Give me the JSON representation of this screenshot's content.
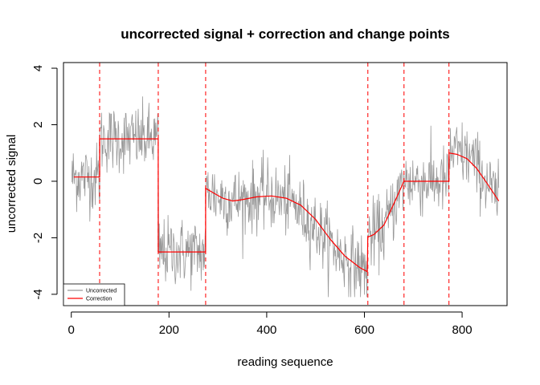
{
  "chart_data": {
    "type": "line",
    "title": "uncorrected signal + correction and change points",
    "xlabel": "reading sequence",
    "ylabel": "uncorrected signal",
    "xlim": [
      -16,
      892
    ],
    "ylim": [
      -4.4,
      4.2
    ],
    "xticks": [
      0,
      200,
      400,
      600,
      800
    ],
    "yticks": [
      -4,
      -2,
      0,
      2,
      4
    ],
    "grid": false,
    "legend_position": "bottom-left",
    "legend": [
      {
        "label": "Uncorrected",
        "color": "#999999"
      },
      {
        "label": "Correction",
        "color": "#ff0000"
      }
    ],
    "change_points": [
      58,
      178,
      275,
      607,
      681,
      773
    ],
    "change_point_color": "#ff0000",
    "series": [
      {
        "name": "Uncorrected",
        "color": "#999999",
        "n": 875,
        "noise_sd": 0.6,
        "spike_max": 3.9,
        "trend_x": [
          0,
          58,
          59,
          178,
          179,
          275,
          276,
          300,
          340,
          400,
          450,
          500,
          550,
          606,
          607,
          640,
          681,
          682,
          773,
          774,
          800,
          820,
          875
        ],
        "trend_y": [
          0.15,
          0.15,
          1.5,
          1.5,
          -2.5,
          -2.5,
          -0.25,
          -0.55,
          -0.7,
          -0.5,
          -0.75,
          -1.6,
          -2.6,
          -3.2,
          -2.0,
          -1.7,
          0.0,
          0.0,
          0.0,
          1.0,
          0.95,
          0.8,
          -0.7
        ]
      },
      {
        "name": "Correction",
        "color": "#ff0000",
        "x": [
          5,
          58,
          58,
          178,
          178,
          275,
          275,
          290,
          310,
          330,
          350,
          380,
          410,
          440,
          470,
          500,
          530,
          560,
          590,
          606,
          607,
          620,
          640,
          660,
          681,
          773,
          773,
          790,
          810,
          830,
          850,
          875
        ],
        "y": [
          0.15,
          0.15,
          1.5,
          1.5,
          -2.5,
          -2.5,
          -0.25,
          -0.4,
          -0.6,
          -0.7,
          -0.65,
          -0.55,
          -0.52,
          -0.6,
          -0.85,
          -1.35,
          -2.05,
          -2.65,
          -3.05,
          -3.2,
          -1.98,
          -1.88,
          -1.55,
          -0.8,
          0.0,
          0.0,
          1.0,
          0.95,
          0.8,
          0.45,
          -0.05,
          -0.7
        ]
      }
    ]
  }
}
